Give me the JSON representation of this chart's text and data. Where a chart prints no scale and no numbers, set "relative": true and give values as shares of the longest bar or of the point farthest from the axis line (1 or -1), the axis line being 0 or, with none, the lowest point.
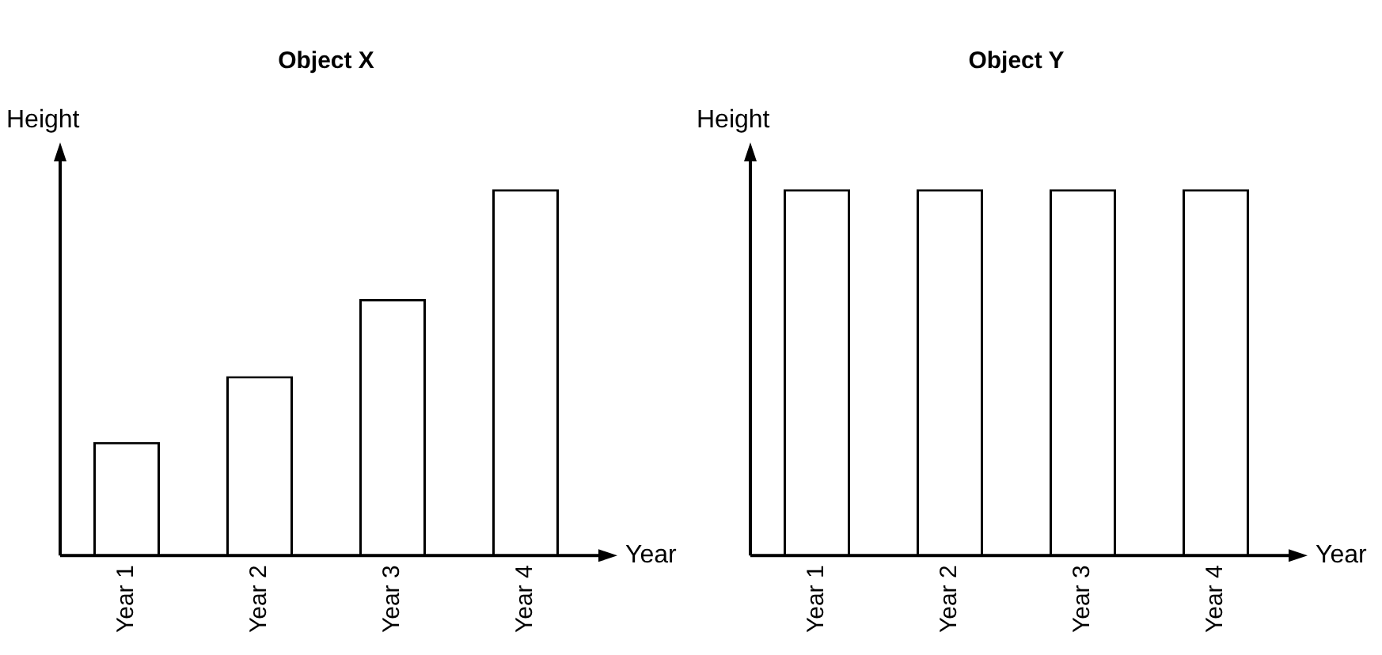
{
  "chart_data": [
    {
      "type": "bar",
      "title": "Object X",
      "xlabel": "Year",
      "ylabel": "Height",
      "relative": true,
      "categories": [
        "Year 1",
        "Year 2",
        "Year 3",
        "Year 4"
      ],
      "values": [
        0.31,
        0.49,
        0.7,
        1
      ],
      "color": "#ffffff",
      "grid": false,
      "legend": false
    },
    {
      "type": "bar",
      "title": "Object Y",
      "xlabel": "Year",
      "ylabel": "Height",
      "relative": true,
      "categories": [
        "Year 1",
        "Year 2",
        "Year 3",
        "Year 4"
      ],
      "values": [
        1,
        1,
        1,
        1
      ],
      "color": "#ffffff",
      "grid": false,
      "legend": false
    }
  ]
}
